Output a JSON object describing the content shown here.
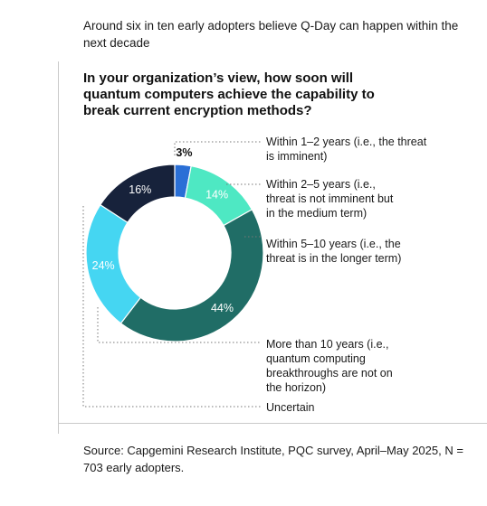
{
  "heading": "Around six in ten early adopters believe Q-Day can happen within the next decade",
  "source": "Source: Capgemini Research Institute, PQC survey, April–May 2025, N = 703 early adopters.",
  "chart_data": {
    "type": "pie",
    "title": "In your organization’s view, how soon will quantum computers achieve the capability to break current encryption methods?",
    "unit": "%",
    "categories": [
      "Within 1–2 years (i.e., the threat is imminent)",
      "Within 2–5 years (i.e., threat is not imminent but in the medium term)",
      "Within 5–10 years (i.e., the threat is in the longer term)",
      "More than 10 years (i.e., quantum computing breakthroughs are not on the horizon)",
      "Uncertain"
    ],
    "values": [
      3,
      14,
      44,
      24,
      16
    ],
    "labels": [
      "3%",
      "14%",
      "44%",
      "24%",
      "16%"
    ],
    "colors": [
      "#2a6fd6",
      "#4ee8c3",
      "#206d66",
      "#45d6f2",
      "#17223b"
    ],
    "legend": "right"
  }
}
